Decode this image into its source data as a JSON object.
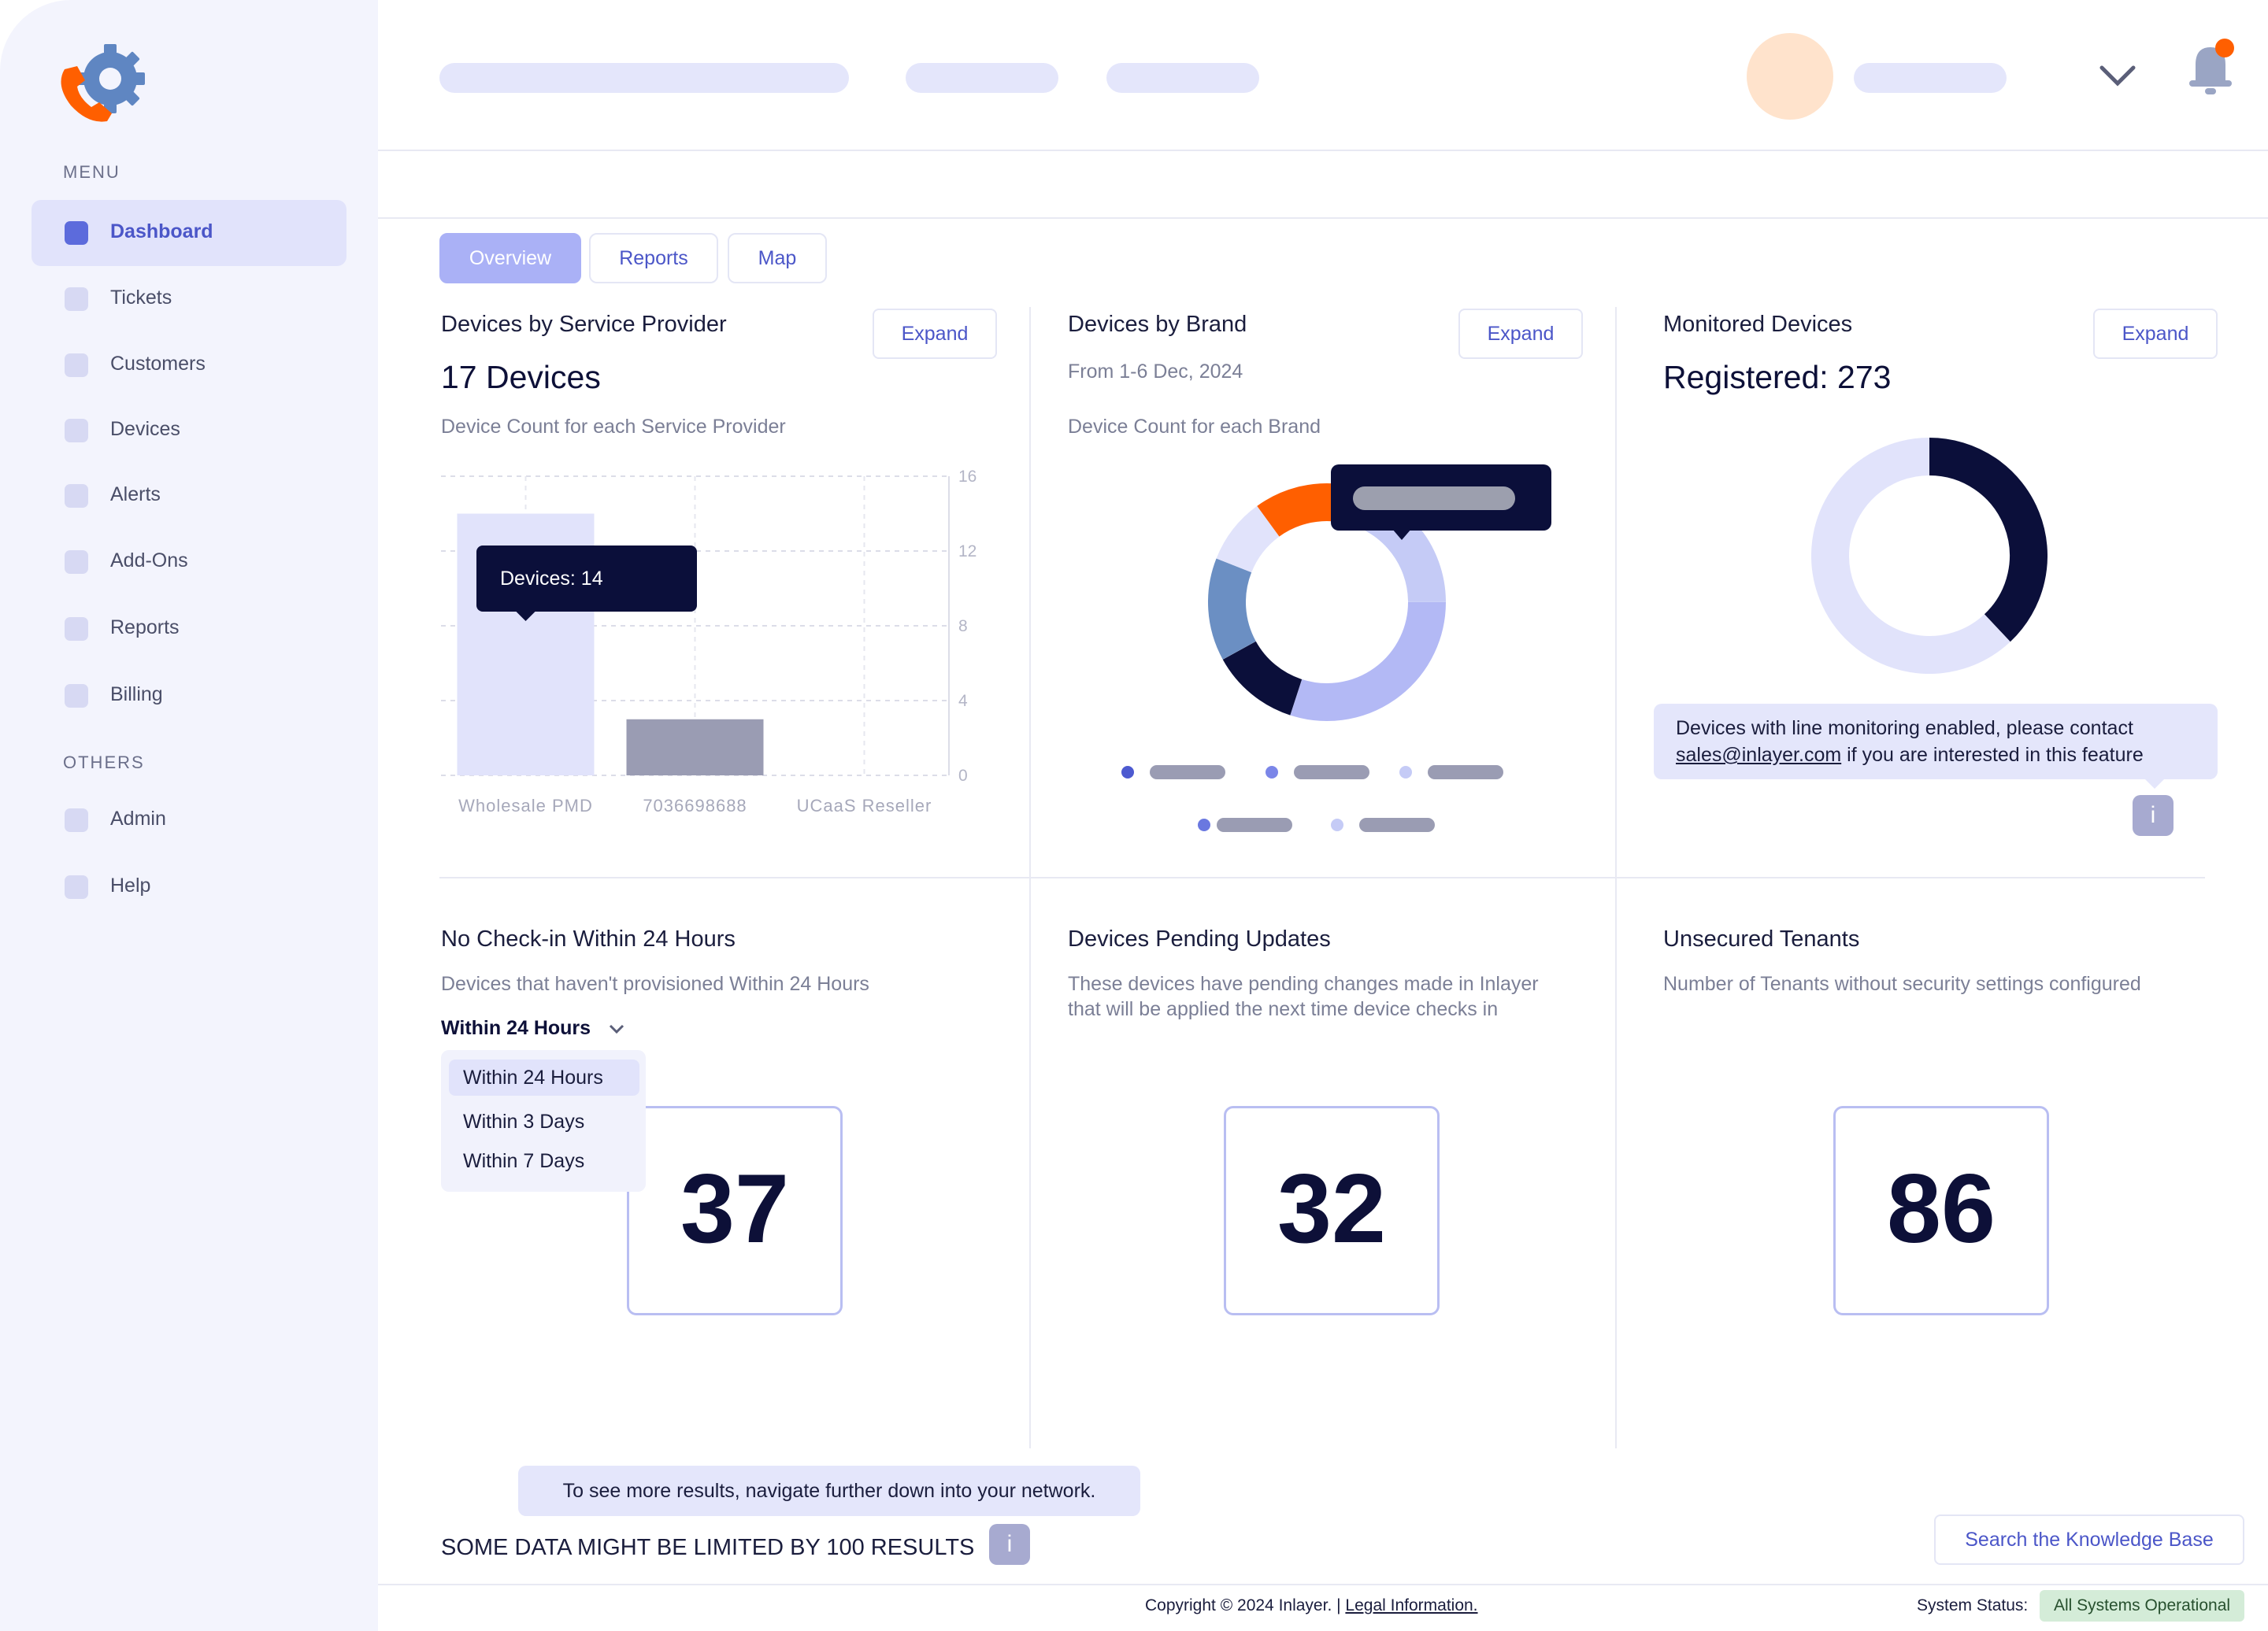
{
  "sidebar": {
    "menu_label": "MENU",
    "others_label": "OTHERS",
    "items": [
      {
        "label": "Dashboard"
      },
      {
        "label": "Tickets"
      },
      {
        "label": "Customers"
      },
      {
        "label": "Devices"
      },
      {
        "label": "Alerts"
      },
      {
        "label": "Add-Ons"
      },
      {
        "label": "Reports"
      },
      {
        "label": "Billing"
      }
    ],
    "other_items": [
      {
        "label": "Admin"
      },
      {
        "label": "Help"
      }
    ]
  },
  "tabs": [
    {
      "label": "Overview"
    },
    {
      "label": "Reports"
    },
    {
      "label": "Map"
    }
  ],
  "cards": {
    "provider": {
      "title": "Devices by Service Provider",
      "headline": "17 Devices",
      "subtitle": "Device Count for each Service Provider",
      "expand": "Expand",
      "tooltip": "Devices: 14"
    },
    "brand": {
      "title": "Devices by Brand",
      "date": "From 1-6 Dec, 2024",
      "subtitle": "Device Count for each Brand",
      "expand": "Expand"
    },
    "monitored": {
      "title": "Monitored Devices",
      "headline": "Registered: 273",
      "expand": "Expand",
      "note_text": "Devices with line monitoring enabled, please contact",
      "note_link": "sales@inlayer.com",
      "note_tail": " if you are interested in this feature",
      "info_icon": "i"
    },
    "checkin": {
      "title": "No Check-in Within 24 Hours",
      "subtitle": "Devices that haven't provisioned Within 24 Hours",
      "selected": "Within 24 Hours",
      "options": [
        "Within 24 Hours",
        "Within 3 Days",
        "Within 7 Days"
      ],
      "value": "37"
    },
    "pending": {
      "title": "Devices Pending Updates",
      "subtitle_1": "These devices have pending changes made in Inlayer",
      "subtitle_2": "that will be applied the next time device checks in",
      "value": "32"
    },
    "unsecured": {
      "title": "Unsecured Tenants",
      "subtitle": "Number of Tenants without security settings configured",
      "value": "86"
    }
  },
  "bottom": {
    "tooltip": "To see more results, navigate further down into your network.",
    "limit_text": "SOME DATA MIGHT BE LIMITED BY 100 RESULTS",
    "info_icon": "i",
    "kb_button": "Search the Knowledge Base"
  },
  "footer": {
    "copyright": "Copyright © 2024 Inlayer. | ",
    "legal": "Legal Information.",
    "status_label": "System Status:",
    "status_value": "All Systems Operational"
  },
  "colors": {
    "accent": "#4b56c8",
    "orange": "#ff5f00",
    "navy": "#0b0f3a",
    "status_green": "#d4ecd8"
  },
  "chart_data": [
    {
      "type": "bar",
      "categories": [
        "Wholesale PMD",
        "7036698688",
        "UCaaS Reseller"
      ],
      "values": [
        14,
        3,
        0
      ],
      "yticks": [
        0,
        4,
        8,
        12,
        16
      ],
      "ylim": [
        0,
        16
      ],
      "grid": true
    },
    {
      "type": "pie",
      "values": [
        12,
        23,
        30,
        12,
        14,
        9
      ]
    },
    {
      "type": "pie",
      "values": [
        38,
        62
      ]
    }
  ]
}
